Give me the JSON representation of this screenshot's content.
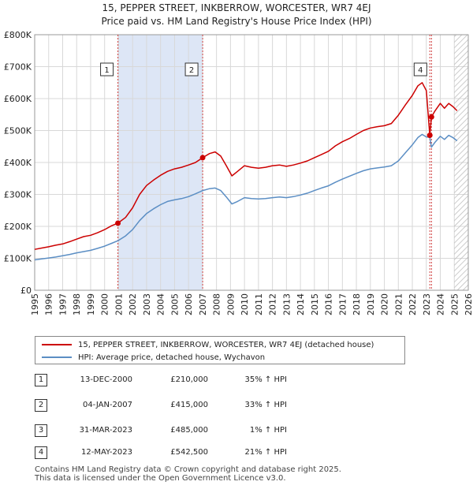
{
  "header": {
    "title_line1": "15, PEPPER STREET, INKBERROW, WORCESTER, WR7 4EJ",
    "title_line2": "Price paid vs. HM Land Registry's House Price Index (HPI)"
  },
  "colors": {
    "property": "#cc0000",
    "hpi": "#5b8ec4",
    "shade": "#dde6f6",
    "grid": "#d8d8d8",
    "marker_line": "#d04040",
    "hatch": "#bbbbbb"
  },
  "chart_data": {
    "type": "line",
    "title": "Price paid vs. HM Land Registry's House Price Index (HPI)",
    "xlabel": "",
    "ylabel": "",
    "xlim": [
      1995,
      2026
    ],
    "ylim": [
      0,
      800000
    ],
    "x_ticks": [
      "1995",
      "1996",
      "1997",
      "1998",
      "1999",
      "2000",
      "2001",
      "2002",
      "2003",
      "2004",
      "2005",
      "2006",
      "2007",
      "2008",
      "2009",
      "2010",
      "2011",
      "2012",
      "2013",
      "2014",
      "2015",
      "2016",
      "2017",
      "2018",
      "2019",
      "2020",
      "2021",
      "2022",
      "2023",
      "2024",
      "2025",
      "2026"
    ],
    "y_ticks": [
      {
        "value": 0,
        "label": "£0"
      },
      {
        "value": 100000,
        "label": "£100K"
      },
      {
        "value": 200000,
        "label": "£200K"
      },
      {
        "value": 300000,
        "label": "£300K"
      },
      {
        "value": 400000,
        "label": "£400K"
      },
      {
        "value": 500000,
        "label": "£500K"
      },
      {
        "value": 600000,
        "label": "£600K"
      },
      {
        "value": 700000,
        "label": "£700K"
      },
      {
        "value": 800000,
        "label": "£800K"
      }
    ],
    "shaded_range": [
      2000.95,
      2007.01
    ],
    "future_hatch_from": 2025.0,
    "series": [
      {
        "name": "15, PEPPER STREET, INKBERROW, WORCESTER, WR7 4EJ (detached house)",
        "color": "#cc0000",
        "x": [
          1995.0,
          1995.5,
          1996.0,
          1996.5,
          1997.0,
          1997.5,
          1998.0,
          1998.5,
          1999.0,
          1999.5,
          2000.0,
          2000.5,
          2000.95,
          2001.5,
          2002.0,
          2002.5,
          2003.0,
          2003.5,
          2004.0,
          2004.5,
          2005.0,
          2005.5,
          2006.0,
          2006.5,
          2007.01,
          2007.5,
          2007.9,
          2008.3,
          2008.7,
          2009.1,
          2009.5,
          2010.0,
          2010.5,
          2011.0,
          2011.5,
          2012.0,
          2012.5,
          2013.0,
          2013.5,
          2014.0,
          2014.5,
          2015.0,
          2015.5,
          2016.0,
          2016.5,
          2017.0,
          2017.5,
          2018.0,
          2018.5,
          2019.0,
          2019.5,
          2020.0,
          2020.5,
          2021.0,
          2021.5,
          2022.0,
          2022.4,
          2022.7,
          2023.0,
          2023.25,
          2023.37,
          2023.6,
          2024.0,
          2024.3,
          2024.6,
          2024.9,
          2025.2
        ],
        "y": [
          128000,
          132000,
          136000,
          141000,
          145000,
          152000,
          160000,
          168000,
          172000,
          180000,
          190000,
          202000,
          210000,
          228000,
          258000,
          300000,
          328000,
          345000,
          360000,
          372000,
          380000,
          385000,
          392000,
          400000,
          415000,
          428000,
          433000,
          420000,
          390000,
          358000,
          372000,
          390000,
          385000,
          382000,
          385000,
          390000,
          392000,
          388000,
          392000,
          398000,
          405000,
          415000,
          425000,
          435000,
          452000,
          465000,
          475000,
          488000,
          500000,
          508000,
          512000,
          515000,
          522000,
          548000,
          580000,
          610000,
          640000,
          650000,
          625000,
          485000,
          542500,
          560000,
          585000,
          570000,
          585000,
          575000,
          562000
        ]
      },
      {
        "name": "HPI: Average price, detached house, Wychavon",
        "color": "#5b8ec4",
        "x": [
          1995.0,
          1995.5,
          1996.0,
          1996.5,
          1997.0,
          1997.5,
          1998.0,
          1998.5,
          1999.0,
          1999.5,
          2000.0,
          2000.5,
          2000.95,
          2001.5,
          2002.0,
          2002.5,
          2003.0,
          2003.5,
          2004.0,
          2004.5,
          2005.0,
          2005.5,
          2006.0,
          2006.5,
          2007.01,
          2007.5,
          2007.9,
          2008.3,
          2008.7,
          2009.1,
          2009.5,
          2010.0,
          2010.5,
          2011.0,
          2011.5,
          2012.0,
          2012.5,
          2013.0,
          2013.5,
          2014.0,
          2014.5,
          2015.0,
          2015.5,
          2016.0,
          2016.5,
          2017.0,
          2017.5,
          2018.0,
          2018.5,
          2019.0,
          2019.5,
          2020.0,
          2020.5,
          2021.0,
          2021.5,
          2022.0,
          2022.4,
          2022.7,
          2023.0,
          2023.25,
          2023.37,
          2023.6,
          2024.0,
          2024.3,
          2024.6,
          2024.9,
          2025.2
        ],
        "y": [
          95000,
          98000,
          101000,
          104000,
          108000,
          112000,
          117000,
          121000,
          125000,
          131000,
          138000,
          147000,
          155000,
          170000,
          190000,
          218000,
          240000,
          255000,
          268000,
          278000,
          283000,
          287000,
          293000,
          302000,
          312000,
          318000,
          320000,
          312000,
          292000,
          270000,
          278000,
          290000,
          287000,
          286000,
          287000,
          290000,
          292000,
          290000,
          293000,
          298000,
          304000,
          312000,
          320000,
          327000,
          338000,
          348000,
          357000,
          366000,
          374000,
          380000,
          383000,
          386000,
          390000,
          405000,
          430000,
          455000,
          478000,
          488000,
          480000,
          479000,
          448000,
          462000,
          482000,
          472000,
          485000,
          478000,
          468000
        ]
      }
    ],
    "markers": [
      {
        "label": "1",
        "x": 2000.95,
        "price": 210000,
        "date": "13-DEC-2000",
        "price_label": "£210,000",
        "hpi": "35% ↑ HPI"
      },
      {
        "label": "2",
        "x": 2007.01,
        "price": 415000,
        "date": "04-JAN-2007",
        "price_label": "£415,000",
        "hpi": "33% ↑ HPI"
      },
      {
        "label": "3",
        "x": 2023.25,
        "price": 485000,
        "date": "31-MAR-2023",
        "price_label": "£485,000",
        "hpi": "1% ↑ HPI"
      },
      {
        "label": "4",
        "x": 2023.37,
        "price": 542500,
        "date": "12-MAY-2023",
        "price_label": "£542,500",
        "hpi": "21% ↑ HPI"
      }
    ],
    "box_labels": [
      "1",
      "2",
      "4"
    ]
  },
  "legend": {
    "property_label": "15, PEPPER STREET, INKBERROW, WORCESTER, WR7 4EJ (detached house)",
    "hpi_label": "HPI: Average price, detached house, Wychavon"
  },
  "transactions": [
    {
      "num": "1",
      "date": "13-DEC-2000",
      "price": "£210,000",
      "hpi": "35% ↑ HPI"
    },
    {
      "num": "2",
      "date": "04-JAN-2007",
      "price": "£415,000",
      "hpi": "33% ↑ HPI"
    },
    {
      "num": "3",
      "date": "31-MAR-2023",
      "price": "£485,000",
      "hpi": "1% ↑ HPI"
    },
    {
      "num": "4",
      "date": "12-MAY-2023",
      "price": "£542,500",
      "hpi": "21% ↑ HPI"
    }
  ],
  "footer": {
    "line1": "Contains HM Land Registry data © Crown copyright and database right 2025.",
    "line2": "This data is licensed under the Open Government Licence v3.0."
  }
}
